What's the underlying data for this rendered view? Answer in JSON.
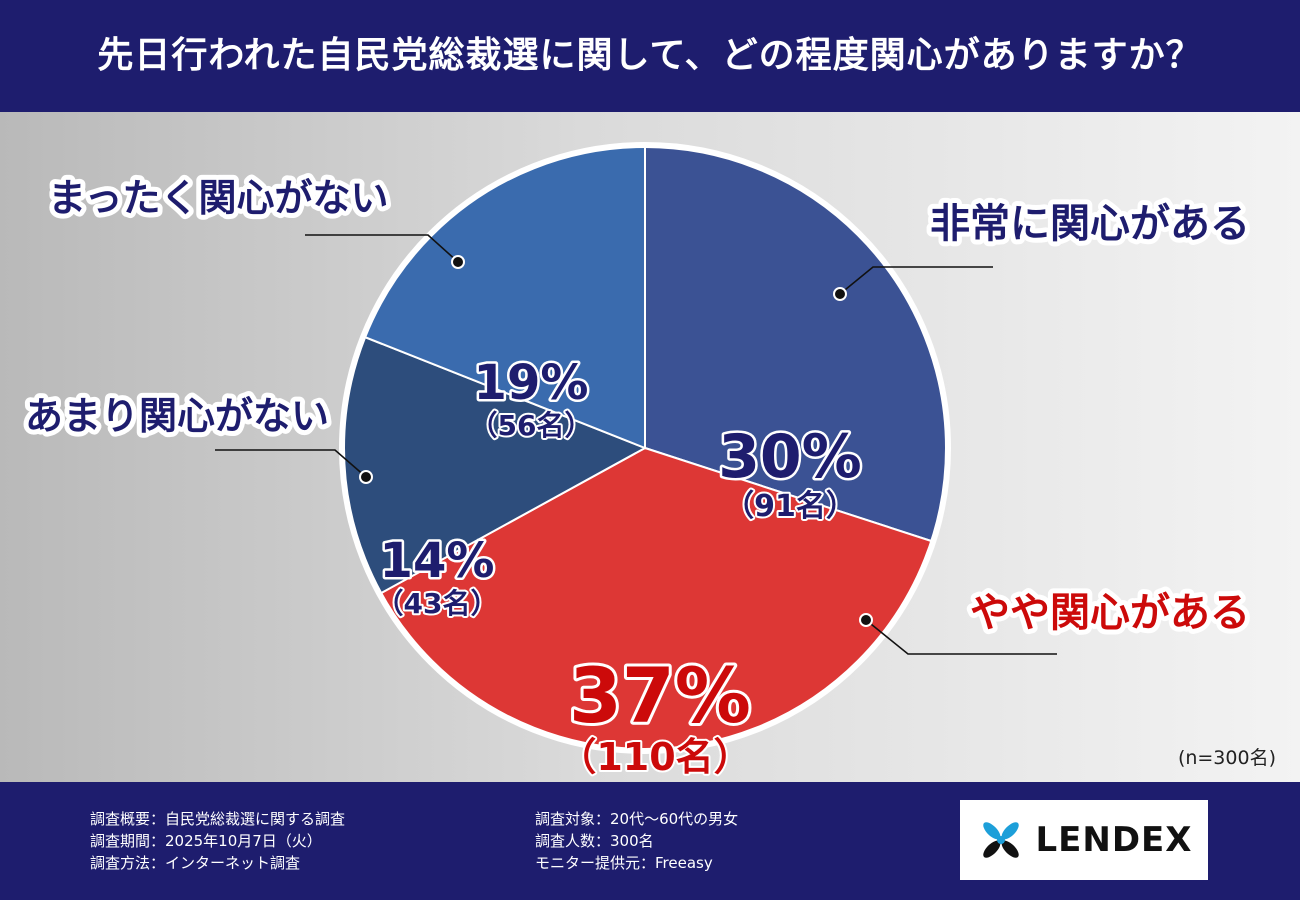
{
  "title": "先日行われた自民党総裁選に関して、どの程度関心がありますか？",
  "chart_data": {
    "type": "pie",
    "categories": [
      "非常に関心がある",
      "やや関心がある",
      "あまり関心がない",
      "まったく関心がない"
    ],
    "values": [
      30,
      37,
      14,
      19
    ],
    "value_labels": [
      "30%",
      "37%",
      "14%",
      "19%"
    ],
    "counts": [
      "（91名）",
      "（110名）",
      "（43名）",
      "（56名）"
    ],
    "colors": [
      "#3b5294",
      "#dd3735",
      "#2d4d7c",
      "#3a6bae"
    ],
    "label_colors": [
      "#1e1d6e",
      "#cc0a0a",
      "#1e1d6e",
      "#1e1d6e"
    ],
    "start_angle": "12 o'clock",
    "direction": "clockwise",
    "sample_note": "(n=300名)"
  },
  "footer": {
    "col1": [
      "調査概要：自民党総裁選に関する調査",
      "調査期間：2025年10月7日（火）",
      "調査方法：インターネット調査"
    ],
    "col2": [
      "調査対象：20代〜60代の男女",
      "調査人数：300名",
      "モニター提供元：Freeasy"
    ],
    "logo_text": "LENDEX"
  }
}
